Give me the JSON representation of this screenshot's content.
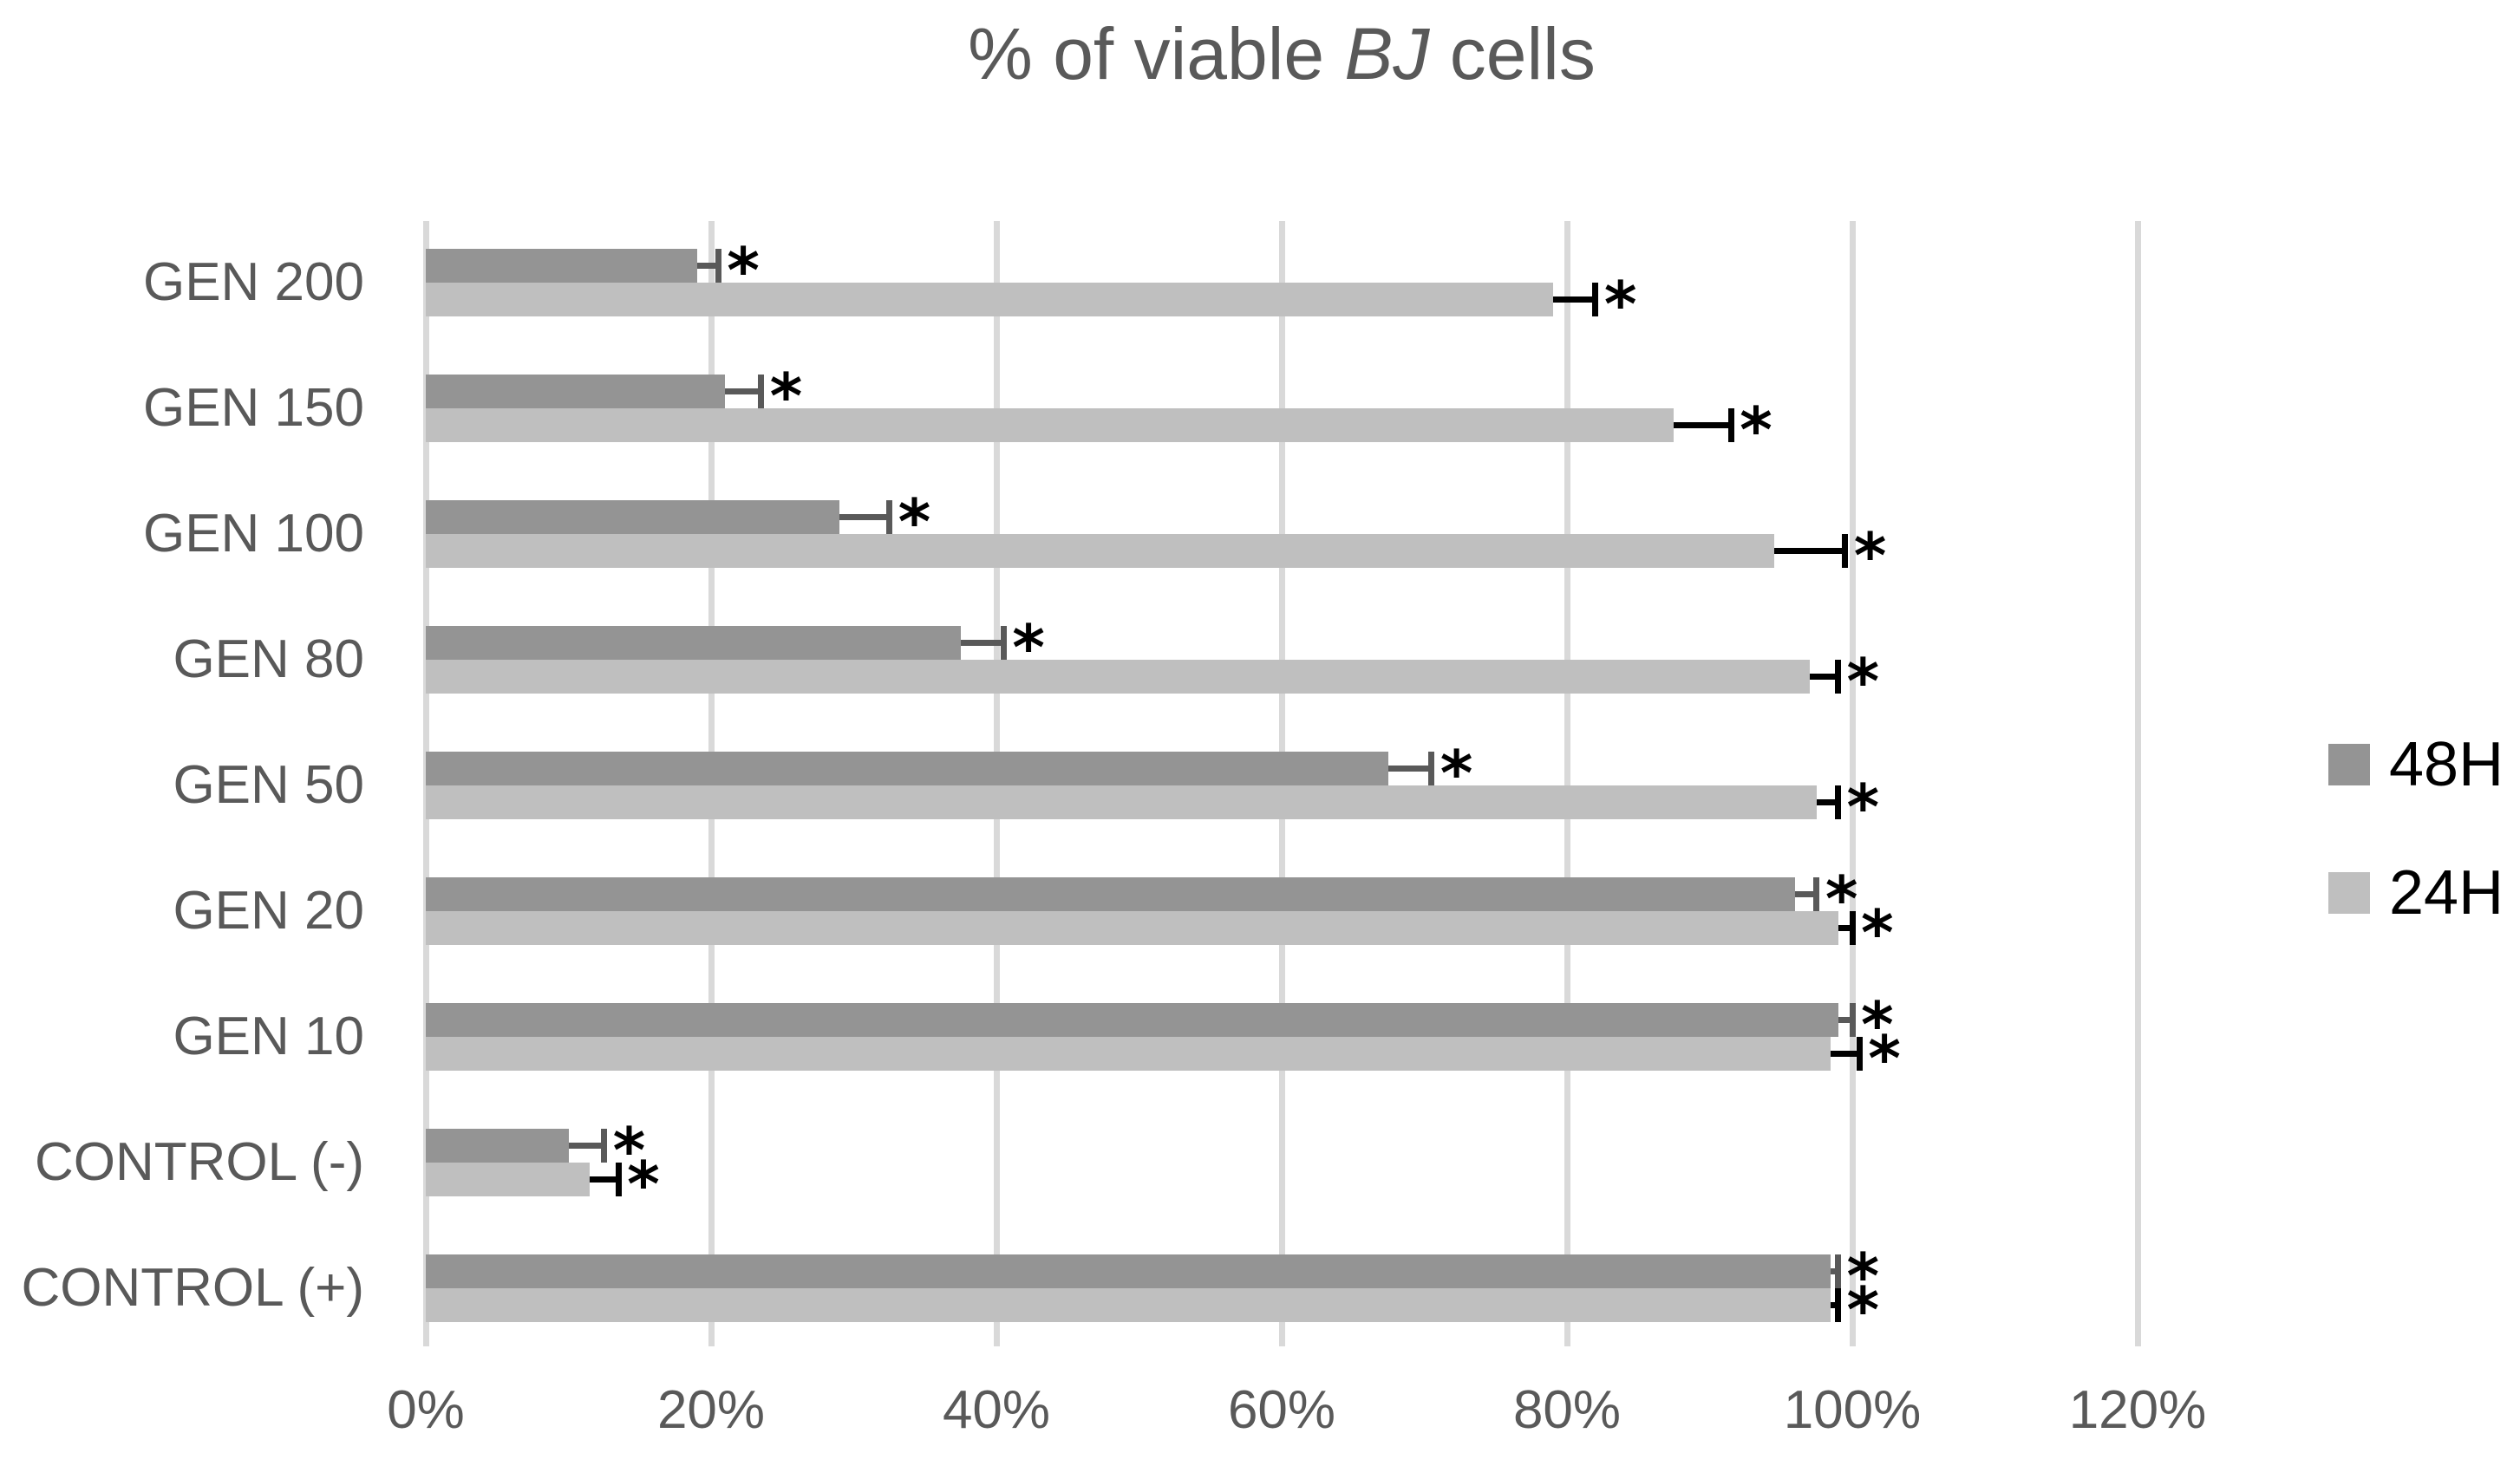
{
  "chart_data": {
    "type": "bar",
    "orientation": "horizontal",
    "title": "% of viable BJ cells",
    "title_parts": [
      {
        "text": "% of viable ",
        "italic": false
      },
      {
        "text": "BJ",
        "italic": true
      },
      {
        "text": " cells",
        "italic": false
      }
    ],
    "categories": [
      "GEN 200",
      "GEN 150",
      "GEN 100",
      "GEN 80",
      "GEN 50",
      "GEN 20",
      "GEN 10",
      "CONTROL (-)",
      "CONTROL (+)"
    ],
    "series": [
      {
        "name": "48H",
        "color": "#949494",
        "error_color": "#595959",
        "values": [
          19,
          21,
          29,
          37.5,
          67.5,
          96,
          99,
          10,
          98.5
        ],
        "errors": [
          1.5,
          2.5,
          3.5,
          3,
          3,
          1.5,
          1,
          2.5,
          0.5
        ],
        "significant": [
          true,
          true,
          true,
          true,
          true,
          true,
          true,
          true,
          true
        ]
      },
      {
        "name": "24H",
        "color": "#bfbfbf",
        "error_color": "#000000",
        "values": [
          79,
          87.5,
          94.5,
          97,
          97.5,
          99,
          98.5,
          11.5,
          98.5
        ],
        "errors": [
          3,
          4,
          5,
          2,
          1.5,
          1,
          2,
          2,
          0.5
        ],
        "significant": [
          true,
          true,
          true,
          true,
          true,
          true,
          true,
          true,
          true
        ]
      }
    ],
    "x_axis": {
      "unit": "%",
      "min": 0,
      "max": 120,
      "ticks": [
        {
          "label": "0%",
          "value": 0
        },
        {
          "label": "20%",
          "value": 20
        },
        {
          "label": "40%",
          "value": 40
        },
        {
          "label": "60%",
          "value": 60
        },
        {
          "label": "80%",
          "value": 80
        },
        {
          "label": "100%",
          "value": 100
        },
        {
          "label": "120%",
          "value": 120
        }
      ]
    },
    "legend": {
      "position": "right",
      "entries": [
        "48H",
        "24H"
      ]
    },
    "grid": true,
    "significance_marker": "*",
    "colors": {
      "background": "#ffffff",
      "gridline": "#d9d9d9",
      "axis_text": "#595959",
      "title_text": "#595959",
      "legend_text": "#000000"
    }
  }
}
